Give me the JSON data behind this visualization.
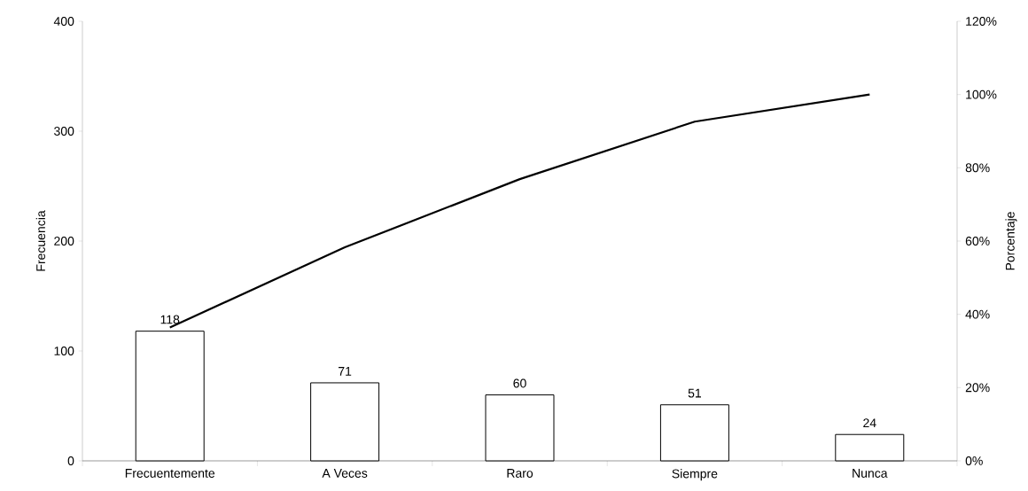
{
  "chart_data": {
    "type": "bar",
    "categories": [
      "Frecuentemente",
      "A Veces",
      "Raro",
      "Siempre",
      "Nunca"
    ],
    "ylabel": "Frecuencia",
    "y2label": "Porcentaje",
    "ylim": [
      0,
      400
    ],
    "yticks": [
      0,
      100,
      200,
      300,
      400
    ],
    "y2lim": [
      0,
      120
    ],
    "y2ticks": [
      {
        "value": 0,
        "label": "0%"
      },
      {
        "value": 20,
        "label": "20%"
      },
      {
        "value": 40,
        "label": "40%"
      },
      {
        "value": 60,
        "label": "60%"
      },
      {
        "value": 80,
        "label": "80%"
      },
      {
        "value": 100,
        "label": "100%"
      },
      {
        "value": 120,
        "label": "120%"
      }
    ],
    "series": [
      {
        "color": "#ffffff",
        "values": [
          118,
          71,
          60,
          51,
          24
        ],
        "value_labels": [
          "118",
          "71",
          "60",
          "51",
          "24"
        ]
      },
      {
        "type": "line",
        "axis": "y2",
        "color": "#000000",
        "values": [
          36.4,
          58.3,
          76.9,
          92.6,
          100
        ]
      }
    ]
  }
}
